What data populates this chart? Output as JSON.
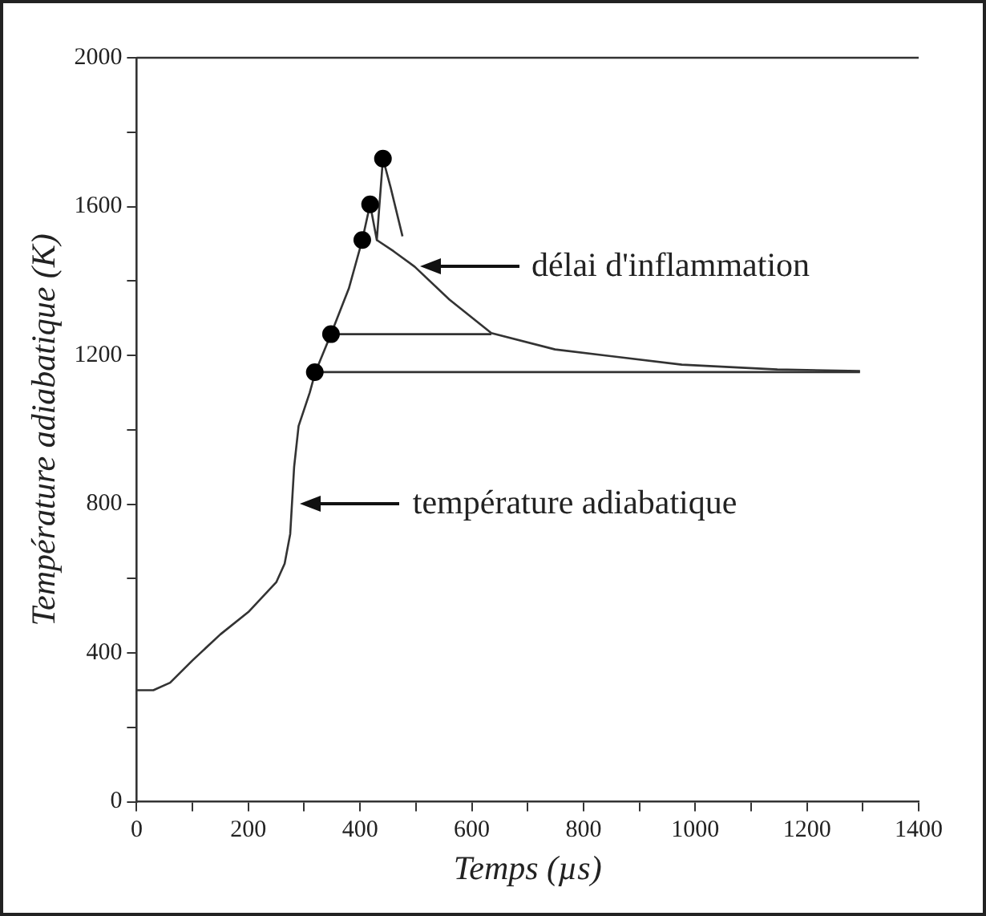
{
  "chart_data": {
    "type": "line",
    "xlabel": "Temps (µs)",
    "ylabel": "Température adiabatique (K)",
    "xlim": [
      0,
      1400
    ],
    "ylim": [
      0,
      2000
    ],
    "xticks": [
      0,
      {
        "value": 100,
        "label": null
      },
      200,
      {
        "value": 300,
        "label": null
      },
      400,
      {
        "value": 500,
        "label": null
      },
      600,
      {
        "value": 700,
        "label": null
      },
      800,
      {
        "value": 900,
        "label": null
      },
      1000,
      {
        "value": 1100,
        "label": null
      },
      1200,
      {
        "value": 1300,
        "label": null
      },
      1400
    ],
    "yticks": [
      0,
      {
        "value": 200,
        "label": null
      },
      400,
      {
        "value": 600,
        "label": null
      },
      800,
      {
        "value": 1000,
        "label": null
      },
      1200,
      {
        "value": 1400,
        "label": null
      },
      1600,
      {
        "value": 1800,
        "label": null
      },
      2000
    ],
    "grid": false,
    "legend": false,
    "series": [
      {
        "type": "line",
        "color": "#333333",
        "x": [
          0,
          30,
          60,
          100,
          150,
          200,
          250,
          265,
          275,
          282,
          290,
          310,
          320,
          348,
          380,
          404,
          418,
          430,
          441,
          455,
          476
        ],
        "values": [
          300,
          300,
          320,
          380,
          450,
          510,
          590,
          640,
          720,
          900,
          1010,
          1100,
          1155,
          1257,
          1380,
          1510,
          1606,
          1510,
          1729,
          1650,
          1520
        ]
      },
      {
        "type": "scatter",
        "color": "#000000",
        "marker": "circle",
        "x": [
          319,
          348,
          404,
          418,
          441
        ],
        "values": [
          1155,
          1257,
          1510,
          1606,
          1729
        ]
      },
      {
        "type": "line",
        "color": "#333333",
        "x": [
          430,
          460,
          498,
          560,
          635,
          749,
          976,
          1147,
          1295
        ],
        "values": [
          1510,
          1480,
          1438,
          1350,
          1260,
          1216,
          1175,
          1162,
          1158
        ]
      },
      {
        "type": "line",
        "color": "#333333",
        "x": [
          348,
          635
        ],
        "values": [
          1257,
          1257
        ]
      },
      {
        "type": "line",
        "color": "#333333",
        "x": [
          319,
          1295
        ],
        "values": [
          1155,
          1155
        ]
      }
    ],
    "annotations": [
      "délai d'inflammation",
      "température adiabatique"
    ]
  }
}
